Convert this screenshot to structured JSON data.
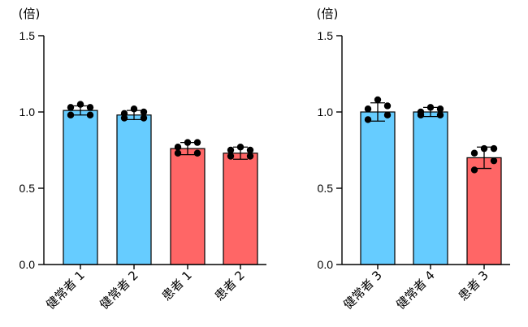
{
  "colors": {
    "healthy": "#66ccff",
    "patient": "#ff6666",
    "axis": "#000000"
  },
  "chart_data": [
    {
      "type": "bar",
      "title": "",
      "ylabel": "(倍)",
      "xlabel": "",
      "ylim": [
        0,
        1.5
      ],
      "yticks": [
        "0.0",
        "0.5",
        "1.0",
        "1.5"
      ],
      "ytick_values": [
        0,
        0.5,
        1.0,
        1.5
      ],
      "categories": [
        "健常者 1",
        "健常者 2",
        "患者 1",
        "患者 2"
      ],
      "groups": [
        "healthy",
        "healthy",
        "patient",
        "patient"
      ],
      "values": [
        1.01,
        0.98,
        0.76,
        0.73
      ],
      "error": [
        0.03,
        0.03,
        0.04,
        0.04
      ],
      "points": [
        [
          1.05,
          1.03,
          1.03,
          0.98,
          0.98
        ],
        [
          1.02,
          1.0,
          0.99,
          0.96,
          0.96
        ],
        [
          0.8,
          0.8,
          0.77,
          0.73,
          0.73
        ],
        [
          0.77,
          0.75,
          0.75,
          0.71,
          0.71
        ]
      ]
    },
    {
      "type": "bar",
      "title": "",
      "ylabel": "(倍)",
      "xlabel": "",
      "ylim": [
        0,
        1.5
      ],
      "yticks": [
        "0.0",
        "0.5",
        "1.0",
        "1.5"
      ],
      "ytick_values": [
        0,
        0.5,
        1.0,
        1.5
      ],
      "categories": [
        "健常者 3",
        "健常者 4",
        "患者 3"
      ],
      "groups": [
        "healthy",
        "healthy",
        "patient"
      ],
      "values": [
        1.0,
        1.0,
        0.7
      ],
      "error": [
        0.06,
        0.03,
        0.07
      ],
      "points": [
        [
          1.08,
          1.04,
          1.02,
          0.98,
          0.95
        ],
        [
          1.03,
          1.02,
          1.0,
          0.98,
          0.98
        ],
        [
          0.76,
          0.76,
          0.73,
          0.68,
          0.62
        ]
      ]
    }
  ]
}
